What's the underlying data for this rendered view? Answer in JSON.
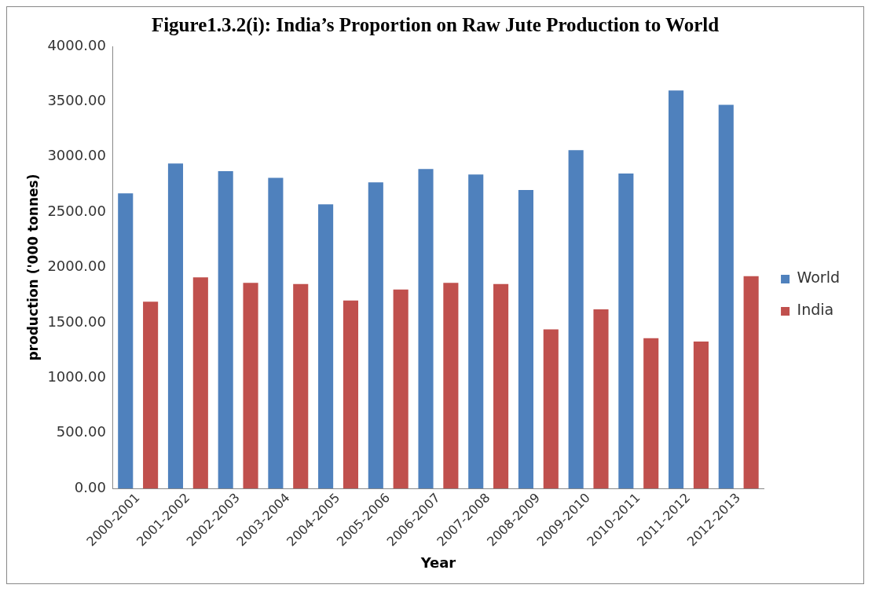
{
  "chart_data": {
    "type": "bar",
    "title": "Figure1.3.2(i): India’s Proportion on Raw Jute Production to World",
    "xlabel": "Year",
    "ylabel": "production ('000 tonnes)",
    "categories": [
      "2000-2001",
      "2001-2002",
      "2002-2003",
      "2003-2004",
      "2004-2005",
      "2005-2006",
      "2006-2007",
      "2007-2008",
      "2008-2009",
      "2009-2010",
      "2010-2011",
      "2011-2012",
      "2012-2013"
    ],
    "series": [
      {
        "name": "World",
        "color": "#4f81bd",
        "values": [
          2670,
          2940,
          2870,
          2810,
          2570,
          2770,
          2890,
          2840,
          2700,
          3060,
          2850,
          3600,
          3470
        ]
      },
      {
        "name": "India",
        "color": "#c0504d",
        "values": [
          1690,
          1910,
          1860,
          1850,
          1700,
          1800,
          1860,
          1850,
          1440,
          1620,
          1360,
          1330,
          1920
        ]
      }
    ],
    "ylim": [
      0,
      4000
    ],
    "yticks": [
      {
        "value": 0,
        "label": "0.00"
      },
      {
        "value": 500,
        "label": "500.00"
      },
      {
        "value": 1000,
        "label": "1000.00"
      },
      {
        "value": 1500,
        "label": "1500.00"
      },
      {
        "value": 2000,
        "label": "2000.00"
      },
      {
        "value": 2500,
        "label": "2500.00"
      },
      {
        "value": 3000,
        "label": "3000.00"
      },
      {
        "value": 3500,
        "label": "3500.00"
      },
      {
        "value": 4000,
        "label": "4000.00"
      }
    ],
    "grid": false,
    "legend": "right"
  }
}
